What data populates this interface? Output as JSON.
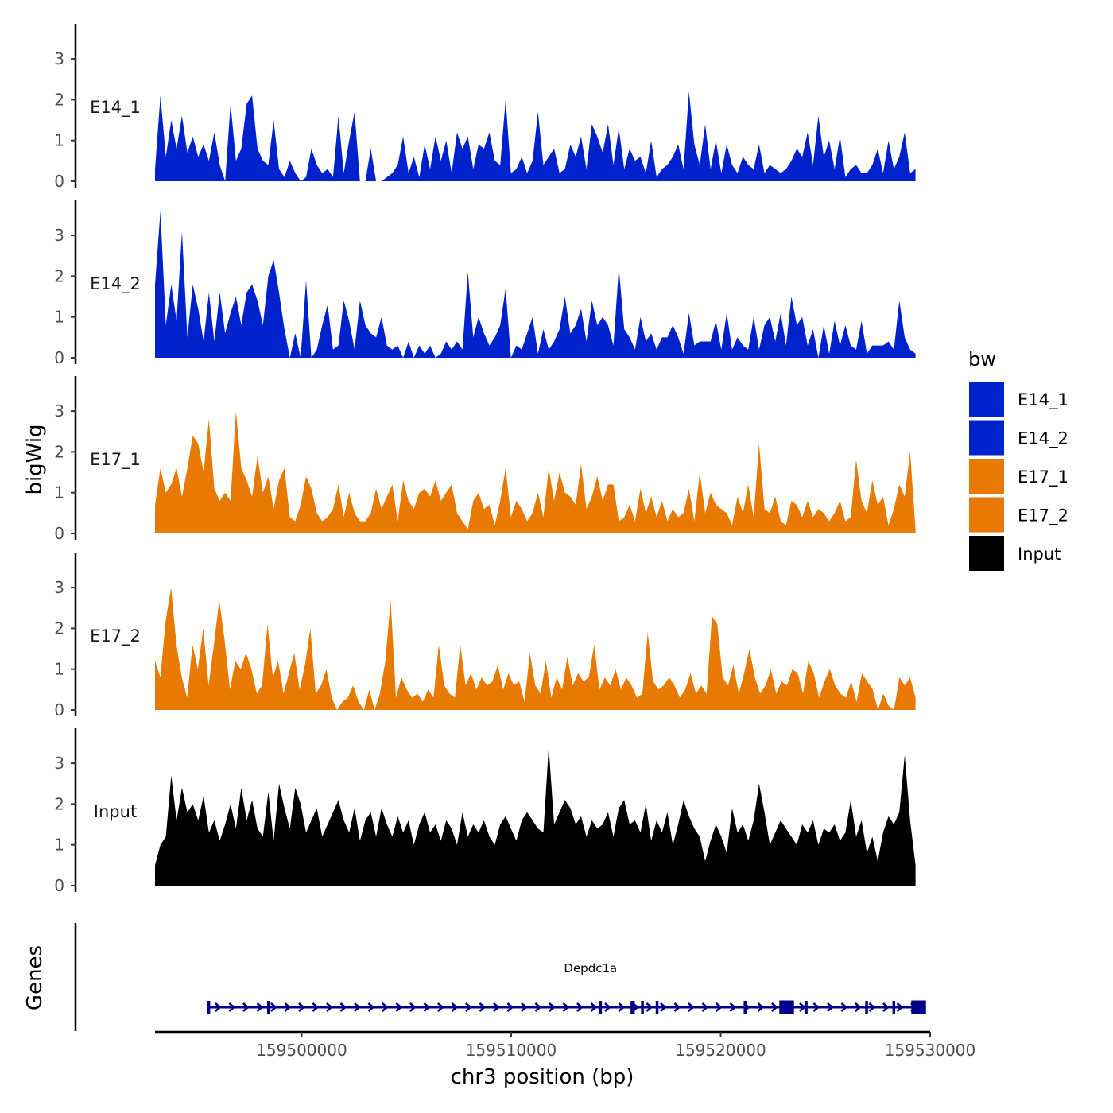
{
  "chart_data": {
    "type": "area",
    "ylabel": "bigWig",
    "xlabel": "chr3 position (bp)",
    "x_range": [
      159493000,
      159530000
    ],
    "x_ticks": [
      159500000,
      159510000,
      159520000,
      159530000
    ],
    "x_tick_labels": [
      "159500000",
      "159510000",
      "159520000",
      "159530000"
    ],
    "y_ticks": [
      0,
      1,
      2,
      3
    ],
    "y_tick_labels": [
      "0",
      "1",
      "2",
      "3"
    ],
    "ylim": [
      0,
      3.8
    ],
    "legend": {
      "title": "bw",
      "position": "right",
      "entries": [
        {
          "label": "E14_1",
          "color": "#0022CC"
        },
        {
          "label": "E14_2",
          "color": "#0022CC"
        },
        {
          "label": "E17_1",
          "color": "#E87A04"
        },
        {
          "label": "E17_2",
          "color": "#E87A04"
        },
        {
          "label": "Input",
          "color": "#000000"
        }
      ]
    },
    "series": [
      {
        "name": "E14_1",
        "color": "#0022CC",
        "x_start": 159493000,
        "x_end": 159529300,
        "values": [
          0.3,
          2.1,
          0.6,
          1.5,
          0.8,
          1.6,
          0.7,
          1.1,
          0.6,
          0.9,
          0.5,
          1.2,
          0.4,
          0,
          1.9,
          0.5,
          0.8,
          1.9,
          2.1,
          0.8,
          0.5,
          0.4,
          1.5,
          0.3,
          0.1,
          0.5,
          0.2,
          0,
          0.1,
          0.8,
          0.4,
          0.2,
          0.3,
          0.1,
          1.6,
          0.2,
          1.0,
          1.7,
          0,
          0,
          0.8,
          0,
          0,
          0.1,
          0.2,
          0.4,
          1.1,
          0.2,
          0.6,
          0.1,
          0.9,
          0.3,
          1.1,
          0.5,
          1.0,
          0.2,
          1.2,
          0.8,
          1.1,
          0.3,
          0.9,
          0.8,
          1.2,
          0.5,
          0.4,
          2.0,
          0.2,
          0.3,
          0.6,
          0.2,
          0.5,
          1.7,
          0.4,
          0.6,
          0.8,
          0.2,
          0.3,
          0.9,
          0.6,
          1.1,
          0.3,
          1.4,
          1.1,
          0.7,
          1.4,
          0.4,
          1.3,
          0.3,
          0.8,
          0.5,
          0.6,
          0.2,
          1.0,
          0.1,
          0.3,
          0.4,
          0.6,
          0.9,
          0.3,
          2.2,
          0.9,
          0.4,
          1.4,
          0.3,
          1.0,
          0.2,
          0.9,
          0.4,
          0.2,
          0.6,
          0.4,
          0.3,
          0.9,
          0.2,
          0.4,
          0.3,
          0.2,
          0.3,
          0.5,
          0.8,
          0.6,
          1.2,
          0.4,
          1.6,
          0.6,
          1.0,
          0.3,
          1.1,
          0.1,
          0.3,
          0.4,
          0.2,
          0.2,
          0.4,
          0.8,
          0.2,
          1.0,
          0.3,
          0.6,
          1.2,
          0.2,
          0.3
        ]
      },
      {
        "name": "E14_2",
        "color": "#0022CC",
        "x_start": 159493000,
        "x_end": 159529300,
        "values": [
          1.8,
          3.6,
          0.8,
          1.8,
          0.9,
          3.1,
          0.5,
          1.8,
          1.2,
          0.4,
          1.6,
          0.4,
          1.6,
          0.6,
          1.1,
          1.5,
          0.8,
          1.6,
          1.8,
          1.4,
          0.8,
          2.0,
          2.4,
          1.6,
          0.7,
          0,
          0.6,
          0,
          1.9,
          0,
          0.2,
          0.8,
          1.3,
          0.2,
          0.3,
          1.4,
          0.9,
          0.2,
          1.4,
          0.8,
          0.6,
          0.5,
          1.0,
          0.3,
          0.2,
          0.3,
          0,
          0.4,
          0,
          0.3,
          0.1,
          0.3,
          0,
          0.1,
          0.4,
          0.2,
          0.4,
          0.2,
          2.1,
          0.5,
          1.0,
          0.6,
          0.3,
          0.5,
          0.8,
          1.7,
          0,
          0.3,
          0.2,
          0.6,
          1.0,
          0.1,
          0.7,
          0.2,
          0.4,
          0.7,
          1.5,
          0.6,
          0.8,
          1.2,
          0.4,
          1.4,
          0.8,
          1.0,
          0.8,
          0.3,
          2.2,
          0.7,
          0.5,
          0.2,
          1.0,
          0.4,
          0.6,
          0.2,
          0.5,
          0.5,
          0.8,
          0.5,
          0.1,
          1.1,
          0.3,
          0.4,
          0.4,
          0.4,
          0.9,
          0.2,
          1.1,
          0.2,
          0.5,
          0.3,
          0.2,
          1.0,
          0.2,
          0.8,
          1.0,
          0.4,
          1.1,
          0.3,
          1.5,
          0.8,
          1.0,
          0.3,
          0.7,
          0,
          0.8,
          0.1,
          0.9,
          0.3,
          0.8,
          0.3,
          0.2,
          0.9,
          0.1,
          0.3,
          0.3,
          0.3,
          0.4,
          0.2,
          1.4,
          0.5,
          0.2,
          0.1
        ]
      },
      {
        "name": "E17_1",
        "color": "#E87A04",
        "x_start": 159493000,
        "x_end": 159529300,
        "values": [
          0.7,
          1.6,
          1.0,
          1.2,
          1.6,
          0.9,
          1.6,
          2.4,
          2.2,
          1.5,
          2.8,
          1.1,
          0.8,
          1.0,
          0.8,
          3.0,
          1.6,
          1.3,
          0.9,
          1.9,
          1.0,
          1.4,
          0.6,
          1.3,
          1.6,
          0.4,
          0.3,
          0.7,
          1.4,
          1.1,
          0.5,
          0.3,
          0.4,
          0.6,
          1.2,
          0.4,
          1.0,
          0.5,
          0.3,
          0.3,
          0.5,
          1.1,
          0.6,
          0.9,
          1.2,
          0.3,
          1.3,
          0.8,
          0.6,
          1.0,
          1.1,
          0.9,
          1.3,
          0.8,
          1.0,
          1.2,
          0.5,
          0.3,
          0.1,
          0.8,
          1.0,
          0.6,
          0.7,
          0.2,
          0.8,
          1.6,
          0.4,
          0.8,
          0.6,
          0.3,
          0.5,
          1.0,
          0.4,
          1.6,
          0.8,
          1.5,
          1.0,
          0.9,
          0.7,
          1.7,
          0.6,
          0.9,
          1.4,
          0.8,
          1.2,
          1.2,
          0.3,
          0.4,
          0.7,
          0.3,
          1.1,
          0.5,
          0.9,
          0.4,
          0.8,
          0.3,
          0.6,
          0.4,
          0.5,
          1.1,
          0.3,
          1.5,
          0.5,
          1.0,
          0.7,
          0.6,
          0.5,
          0.2,
          0.9,
          0.5,
          1.2,
          0.4,
          2.2,
          0.6,
          0.5,
          0.9,
          0.3,
          0.2,
          0.8,
          0.7,
          0.4,
          0.8,
          0.4,
          0.6,
          0.5,
          0.3,
          0.5,
          0.8,
          0.3,
          0.4,
          1.8,
          0.8,
          0.5,
          1.3,
          0.7,
          0.9,
          0.2,
          0.6,
          1.2,
          0.9,
          2.0,
          0.1
        ]
      },
      {
        "name": "E17_2",
        "color": "#E87A04",
        "x_start": 159493000,
        "x_end": 159529300,
        "values": [
          1.2,
          0.8,
          2.2,
          3.0,
          1.6,
          0.8,
          0.3,
          1.6,
          1.0,
          2.0,
          0.6,
          1.6,
          2.7,
          1.7,
          0.5,
          1.2,
          1.0,
          1.4,
          1.0,
          0.4,
          0.6,
          2.1,
          0.8,
          1.2,
          0.4,
          0.9,
          1.4,
          0.5,
          1.1,
          2.0,
          0.4,
          0.6,
          1.0,
          0.3,
          0,
          0.2,
          0.3,
          0.6,
          0.2,
          0,
          0.5,
          0,
          0.4,
          1.2,
          2.7,
          0.3,
          0.8,
          0.5,
          0.3,
          0.4,
          0.2,
          0.5,
          0.3,
          1.6,
          0.6,
          0.4,
          0.3,
          1.6,
          0.6,
          0.9,
          0.5,
          0.8,
          0.6,
          0.7,
          1.1,
          0.5,
          0.9,
          0.6,
          0.7,
          0.2,
          1.4,
          0.6,
          0.4,
          1.2,
          0.3,
          0.8,
          0.5,
          1.3,
          0.6,
          0.9,
          0.7,
          0.8,
          1.6,
          0.5,
          0.8,
          0.6,
          1.0,
          0.5,
          0.8,
          0.6,
          0.3,
          0.4,
          1.9,
          0.7,
          0.5,
          0.6,
          0.8,
          0.6,
          0.3,
          0.5,
          0.9,
          0.4,
          0.6,
          0.4,
          2.3,
          2.1,
          0.8,
          0.6,
          1.1,
          0.4,
          0.9,
          1.5,
          0.8,
          0.4,
          0.6,
          1.0,
          0.4,
          0.7,
          0.6,
          1.0,
          0.9,
          0.4,
          1.2,
          0.9,
          0.3,
          0.7,
          1.0,
          0.6,
          0.4,
          0.3,
          0.7,
          0.2,
          0.9,
          0.7,
          0.5,
          0,
          0.4,
          0.1,
          0,
          0.8,
          0.6,
          0.8,
          0.3
        ]
      },
      {
        "name": "Input",
        "color": "#000000",
        "x_start": 159493000,
        "x_end": 159529300,
        "values": [
          0.5,
          1.0,
          1.2,
          2.7,
          1.6,
          2.4,
          1.8,
          2.0,
          1.6,
          2.2,
          1.3,
          1.6,
          1.1,
          1.5,
          2.0,
          1.4,
          2.4,
          1.6,
          2.1,
          1.4,
          1.2,
          2.3,
          1.1,
          2.5,
          1.9,
          1.4,
          2.4,
          2.0,
          1.3,
          1.6,
          1.9,
          1.2,
          1.5,
          1.8,
          2.1,
          1.6,
          1.3,
          1.9,
          1.1,
          1.6,
          1.8,
          1.2,
          1.9,
          1.5,
          1.2,
          1.7,
          1.3,
          1.6,
          1.0,
          1.5,
          1.8,
          1.3,
          1.5,
          1.1,
          1.6,
          1.4,
          1.0,
          1.8,
          1.2,
          1.5,
          1.3,
          1.6,
          1.2,
          1.0,
          1.5,
          1.7,
          1.4,
          1.1,
          1.6,
          1.8,
          1.6,
          1.4,
          1.3,
          3.4,
          1.5,
          1.8,
          2.1,
          1.9,
          1.5,
          1.7,
          1.2,
          1.6,
          1.4,
          1.5,
          1.8,
          1.2,
          1.9,
          2.1,
          1.5,
          1.6,
          1.3,
          2.0,
          1.1,
          1.6,
          1.3,
          1.8,
          1.0,
          1.5,
          2.1,
          1.7,
          1.4,
          1.2,
          0.6,
          1.1,
          1.5,
          1.2,
          0.8,
          1.9,
          1.3,
          1.5,
          1.1,
          1.6,
          2.5,
          1.8,
          1.0,
          1.3,
          1.6,
          1.4,
          1.2,
          1.0,
          1.5,
          1.3,
          1.6,
          1.0,
          1.4,
          1.3,
          1.5,
          1.1,
          1.3,
          2.1,
          1.2,
          1.6,
          0.8,
          1.2,
          0.6,
          1.3,
          1.7,
          1.5,
          1.8,
          3.2,
          1.6,
          0.5
        ]
      }
    ],
    "genes": {
      "track_label": "Genes",
      "items": [
        {
          "name": "Depdc1a",
          "start": 159495500,
          "end": 159529800,
          "strand": "+",
          "exons": [
            [
              159495500,
              159495600
            ],
            [
              159498350,
              159498500
            ],
            [
              159514200,
              159514300
            ],
            [
              159515700,
              159515900
            ],
            [
              159516200,
              159516300
            ],
            [
              159516900,
              159517000
            ],
            [
              159521100,
              159521200
            ],
            [
              159522800,
              159523500
            ],
            [
              159524000,
              159524150
            ],
            [
              159526900,
              159527000
            ],
            [
              159528200,
              159528300
            ],
            [
              159529100,
              159529800
            ]
          ]
        }
      ]
    }
  }
}
